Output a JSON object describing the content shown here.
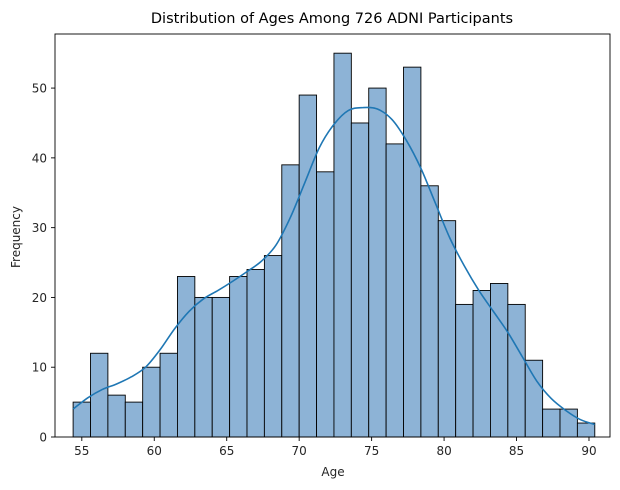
{
  "chart_data": {
    "type": "bar",
    "title": "Distribution of Ages Among 726 ADNI Participants",
    "xlabel": "Age",
    "ylabel": "Frequency",
    "xlim": [
      53.15,
      91.45
    ],
    "ylim": [
      0,
      57.75
    ],
    "bin_edges": [
      54.4,
      55.6,
      56.8,
      58.0,
      59.2,
      60.4,
      61.6,
      62.8,
      64.0,
      65.2,
      66.4,
      67.6,
      68.8,
      70.0,
      71.2,
      72.4,
      73.6,
      74.8,
      76.0,
      77.2,
      78.4,
      79.6,
      80.8,
      82.0,
      83.2,
      84.4,
      85.6,
      86.8,
      88.0,
      89.2,
      90.4
    ],
    "values": [
      5,
      12,
      6,
      5,
      10,
      12,
      23,
      20,
      20,
      23,
      24,
      26,
      39,
      49,
      38,
      55,
      45,
      50,
      42,
      53,
      36,
      31,
      19,
      21,
      22,
      19,
      11,
      4,
      4,
      2
    ],
    "kde": {
      "x": [
        54.4,
        55.4,
        56.4,
        57.4,
        58.4,
        59.4,
        60.4,
        61.4,
        62.4,
        63.4,
        64.4,
        65.4,
        66.4,
        67.4,
        68.4,
        69.4,
        70.4,
        71.4,
        72.4,
        73.4,
        74.4,
        75.4,
        76.4,
        77.4,
        78.4,
        79.4,
        80.4,
        81.4,
        82.4,
        83.4,
        84.4,
        85.4,
        86.4,
        87.4,
        88.4,
        89.4,
        90.4
      ],
      "y": [
        4.0,
        5.6,
        6.8,
        7.6,
        8.6,
        10.0,
        12.5,
        15.5,
        18.0,
        19.8,
        21.0,
        22.3,
        23.7,
        25.2,
        27.5,
        31.5,
        36.5,
        41.5,
        44.8,
        46.8,
        47.2,
        47.0,
        45.5,
        42.5,
        38.5,
        33.5,
        28.5,
        24.5,
        21.0,
        18.0,
        15.0,
        11.5,
        8.0,
        5.5,
        3.8,
        2.5,
        1.8
      ]
    },
    "x_ticks": [
      55,
      60,
      65,
      70,
      75,
      80,
      85,
      90
    ],
    "y_ticks": [
      0,
      10,
      20,
      30,
      40,
      50
    ],
    "colors": {
      "bar_fill": "#8db3d6",
      "bar_edge": "#000000",
      "kde_line": "#1f77b4"
    },
    "grid": false,
    "legend": "none"
  }
}
